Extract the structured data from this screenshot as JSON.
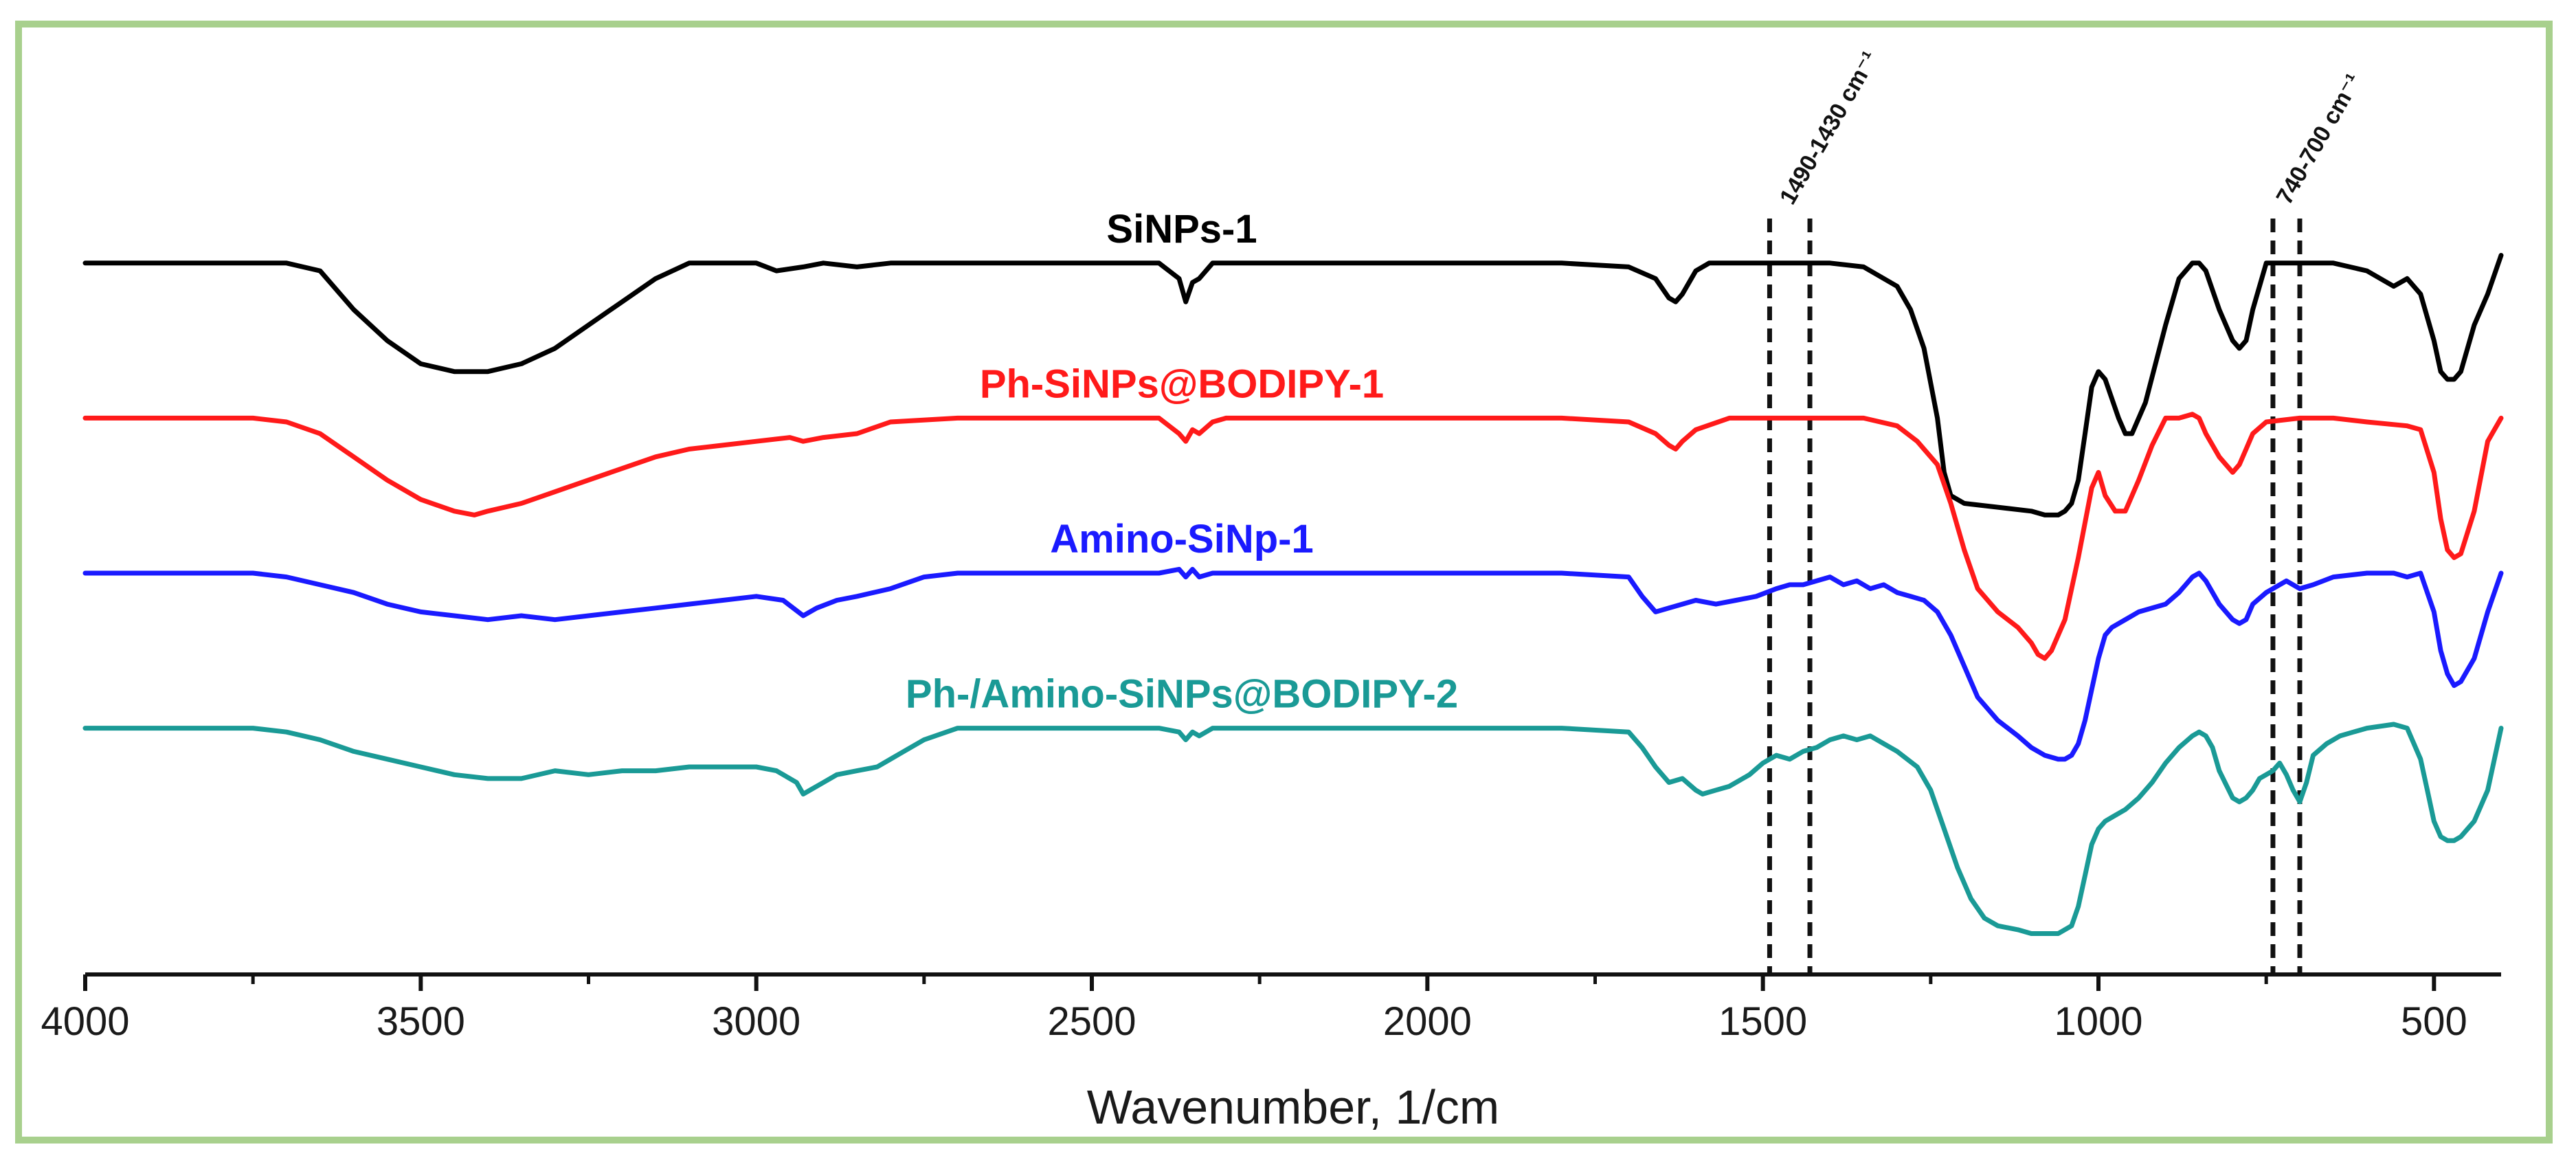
{
  "chart_data": {
    "type": "line",
    "title": "",
    "xlabel": "Wavenumber, 1/cm",
    "ylabel": "",
    "xlim": [
      4000,
      400
    ],
    "x_reversed": true,
    "ylim": [
      0,
      100
    ],
    "x_ticks": [
      4000,
      3500,
      3000,
      2500,
      2000,
      1500,
      1000,
      500
    ],
    "x_tick_labels": [
      "4000",
      "3500",
      "3000",
      "2500",
      "2000",
      "1500",
      "1000",
      "500"
    ],
    "grid": false,
    "legend": "inline labels above each trace",
    "series": [
      {
        "name": "SiNPs-1",
        "color": "#000000",
        "x": [
          4000,
          3750,
          3700,
          3650,
          3600,
          3550,
          3500,
          3450,
          3400,
          3350,
          3300,
          3250,
          3200,
          3150,
          3100,
          3060,
          3000,
          2970,
          2930,
          2900,
          2850,
          2800,
          2700,
          2500,
          2400,
          2370,
          2360,
          2350,
          2340,
          2320,
          2300,
          2200,
          2000,
          1800,
          1700,
          1660,
          1640,
          1630,
          1620,
          1600,
          1580,
          1550,
          1500,
          1450,
          1400,
          1350,
          1300,
          1280,
          1260,
          1240,
          1230,
          1220,
          1200,
          1150,
          1100,
          1080,
          1060,
          1050,
          1040,
          1030,
          1020,
          1010,
          1000,
          990,
          970,
          960,
          950,
          930,
          900,
          880,
          860,
          850,
          840,
          820,
          800,
          790,
          780,
          770,
          750,
          720,
          700,
          650,
          600,
          560,
          540,
          520,
          500,
          490,
          480,
          470,
          460,
          440,
          420,
          400
        ],
        "y": [
          90,
          90,
          90,
          89,
          84,
          80,
          77,
          76,
          76,
          77,
          79,
          82,
          85,
          88,
          90,
          90,
          90,
          89,
          89.5,
          90,
          89.5,
          90,
          90,
          90,
          90,
          88,
          85,
          87.5,
          88,
          90,
          90,
          90,
          90,
          90,
          89.5,
          88,
          85.5,
          85,
          86,
          89,
          90,
          90,
          90,
          90,
          90,
          89.5,
          87,
          84,
          79,
          70,
          63,
          60,
          59,
          58.5,
          58,
          57.5,
          57.5,
          58,
          59,
          62,
          68,
          74,
          76,
          75,
          70,
          68,
          68,
          72,
          82,
          88,
          90,
          90,
          89,
          84,
          80,
          79,
          80,
          84,
          90,
          90,
          90,
          90,
          89,
          87,
          88,
          86,
          80,
          76,
          75,
          75,
          76,
          82,
          86,
          91
        ]
      },
      {
        "name": "Ph-SiNPs@BODIPY-1",
        "color": "#ff1a1a",
        "x": [
          4000,
          3750,
          3700,
          3650,
          3600,
          3550,
          3500,
          3450,
          3420,
          3400,
          3350,
          3300,
          3250,
          3200,
          3150,
          3100,
          3050,
          3000,
          2950,
          2930,
          2900,
          2850,
          2800,
          2700,
          2500,
          2400,
          2370,
          2360,
          2350,
          2340,
          2320,
          2300,
          2200,
          2000,
          1800,
          1700,
          1660,
          1640,
          1630,
          1620,
          1600,
          1550,
          1500,
          1450,
          1400,
          1350,
          1300,
          1270,
          1240,
          1220,
          1200,
          1180,
          1150,
          1120,
          1100,
          1090,
          1080,
          1070,
          1050,
          1030,
          1010,
          1000,
          990,
          975,
          960,
          940,
          920,
          900,
          880,
          860,
          850,
          840,
          820,
          800,
          790,
          780,
          770,
          750,
          700,
          650,
          600,
          540,
          520,
          500,
          490,
          480,
          470,
          460,
          440,
          420,
          400
        ],
        "y": [
          70,
          70,
          69.5,
          68,
          65,
          62,
          59.5,
          58,
          57.5,
          58,
          59,
          60.5,
          62,
          63.5,
          65,
          66,
          66.5,
          67,
          67.5,
          67,
          67.5,
          68,
          69.5,
          70,
          70,
          70,
          68,
          67,
          68.5,
          68,
          69.5,
          70,
          70,
          70,
          70,
          69.5,
          68,
          66.5,
          66,
          67,
          68.5,
          70,
          70,
          70,
          70,
          70,
          69,
          67,
          64,
          59,
          53,
          48,
          45,
          43,
          41,
          39.5,
          39,
          40,
          44,
          52,
          61,
          63,
          60,
          58,
          58,
          62,
          66.5,
          70,
          70,
          70.5,
          70,
          68,
          65,
          63,
          64,
          66,
          68,
          69.5,
          70,
          70,
          69.5,
          69,
          68.5,
          63,
          57,
          53,
          52,
          52.5,
          58,
          67,
          70
        ]
      },
      {
        "name": "Amino-SiNp-1",
        "color": "#1a1aff",
        "x": [
          4000,
          3750,
          3700,
          3650,
          3600,
          3550,
          3500,
          3450,
          3400,
          3350,
          3300,
          3250,
          3200,
          3150,
          3100,
          3050,
          3000,
          2960,
          2930,
          2910,
          2880,
          2850,
          2800,
          2750,
          2700,
          2500,
          2400,
          2370,
          2360,
          2350,
          2340,
          2320,
          2300,
          2200,
          2000,
          1800,
          1700,
          1680,
          1660,
          1640,
          1620,
          1600,
          1570,
          1540,
          1510,
          1480,
          1460,
          1440,
          1420,
          1400,
          1380,
          1360,
          1340,
          1320,
          1300,
          1280,
          1260,
          1240,
          1220,
          1200,
          1180,
          1150,
          1120,
          1100,
          1080,
          1060,
          1050,
          1040,
          1030,
          1020,
          1010,
          1000,
          990,
          980,
          960,
          940,
          920,
          900,
          880,
          860,
          850,
          840,
          820,
          800,
          790,
          780,
          770,
          750,
          720,
          700,
          680,
          650,
          600,
          560,
          540,
          520,
          500,
          490,
          480,
          470,
          460,
          440,
          420,
          400
        ],
        "y": [
          50,
          50,
          49.5,
          48.5,
          47.5,
          46,
          45,
          44.5,
          44,
          44.5,
          44,
          44.5,
          45,
          45.5,
          46,
          46.5,
          47,
          46.5,
          44.5,
          45.5,
          46.5,
          47,
          48,
          49.5,
          50,
          50,
          50,
          50.5,
          49.5,
          50.5,
          49.5,
          50,
          50,
          50,
          50,
          50,
          49.5,
          47,
          45,
          45.5,
          46,
          46.5,
          46,
          46.5,
          47,
          48,
          48.5,
          48.5,
          49,
          49.5,
          48.5,
          49,
          48,
          48.5,
          47.5,
          47,
          46.5,
          45,
          42,
          38,
          34,
          31,
          29,
          27.5,
          26.5,
          26,
          26,
          26.5,
          28,
          31,
          35,
          39,
          42,
          43,
          44,
          45,
          45.5,
          46,
          47.5,
          49.5,
          50,
          49,
          46,
          44,
          43.5,
          44,
          46,
          47.5,
          49,
          48,
          48.5,
          49.5,
          50,
          50,
          49.5,
          50,
          45,
          40,
          37,
          35.5,
          36,
          39,
          45,
          50
        ]
      },
      {
        "name": "Ph-/Amino-SiNPs@BODIPY-2",
        "color": "#1a9a96",
        "x": [
          4000,
          3750,
          3700,
          3650,
          3600,
          3550,
          3500,
          3450,
          3400,
          3350,
          3300,
          3250,
          3200,
          3150,
          3100,
          3050,
          3000,
          2970,
          2940,
          2930,
          2920,
          2900,
          2880,
          2850,
          2820,
          2800,
          2780,
          2750,
          2700,
          2500,
          2400,
          2370,
          2360,
          2350,
          2340,
          2320,
          2300,
          2200,
          2000,
          1800,
          1700,
          1680,
          1660,
          1640,
          1620,
          1600,
          1590,
          1570,
          1550,
          1520,
          1500,
          1480,
          1460,
          1440,
          1420,
          1400,
          1380,
          1360,
          1340,
          1320,
          1300,
          1270,
          1250,
          1230,
          1210,
          1190,
          1170,
          1150,
          1120,
          1100,
          1080,
          1060,
          1040,
          1030,
          1020,
          1010,
          1000,
          990,
          980,
          960,
          940,
          920,
          900,
          880,
          860,
          850,
          840,
          830,
          820,
          800,
          790,
          780,
          770,
          760,
          740,
          730,
          720,
          710,
          700,
          690,
          680,
          660,
          640,
          620,
          600,
          560,
          540,
          520,
          510,
          500,
          490,
          480,
          470,
          460,
          450,
          440,
          420,
          400
        ],
        "y": [
          30,
          30,
          29.5,
          28.5,
          27,
          26,
          25,
          24,
          23.5,
          23.5,
          24.5,
          24,
          24.5,
          24.5,
          25,
          25,
          25,
          24.5,
          23,
          21.5,
          22,
          23,
          24,
          24.5,
          25,
          26,
          27,
          28.5,
          30,
          30,
          30,
          29.5,
          28.5,
          29.5,
          29,
          30,
          30,
          30,
          30,
          30,
          29.5,
          27.5,
          25,
          23,
          23.5,
          22,
          21.5,
          22,
          22.5,
          24,
          25.5,
          26.5,
          26,
          27,
          27.5,
          28.5,
          29,
          28.5,
          29,
          28,
          27,
          25,
          22,
          17,
          12,
          8,
          5.5,
          4.5,
          4,
          3.5,
          3.5,
          3.5,
          4.5,
          7,
          11,
          15,
          17,
          18,
          18.5,
          19.5,
          21,
          23,
          25.5,
          27.5,
          29,
          29.5,
          29,
          27.5,
          24.5,
          21,
          20.5,
          21,
          22,
          23.5,
          24.5,
          25.5,
          24,
          22,
          20.5,
          23,
          26.5,
          28,
          29,
          29.5,
          30,
          30.5,
          30,
          26,
          22,
          18,
          16,
          15.5,
          15.5,
          16,
          17,
          18,
          22,
          30
        ]
      }
    ],
    "annotations": [
      {
        "label": "1490-1430 cm⁻¹",
        "x_range": [
          1490,
          1430
        ],
        "style": "dashed vertical lines"
      },
      {
        "label": "740-700 cm⁻¹",
        "x_range": [
          740,
          700
        ],
        "style": "dashed vertical lines"
      }
    ]
  }
}
